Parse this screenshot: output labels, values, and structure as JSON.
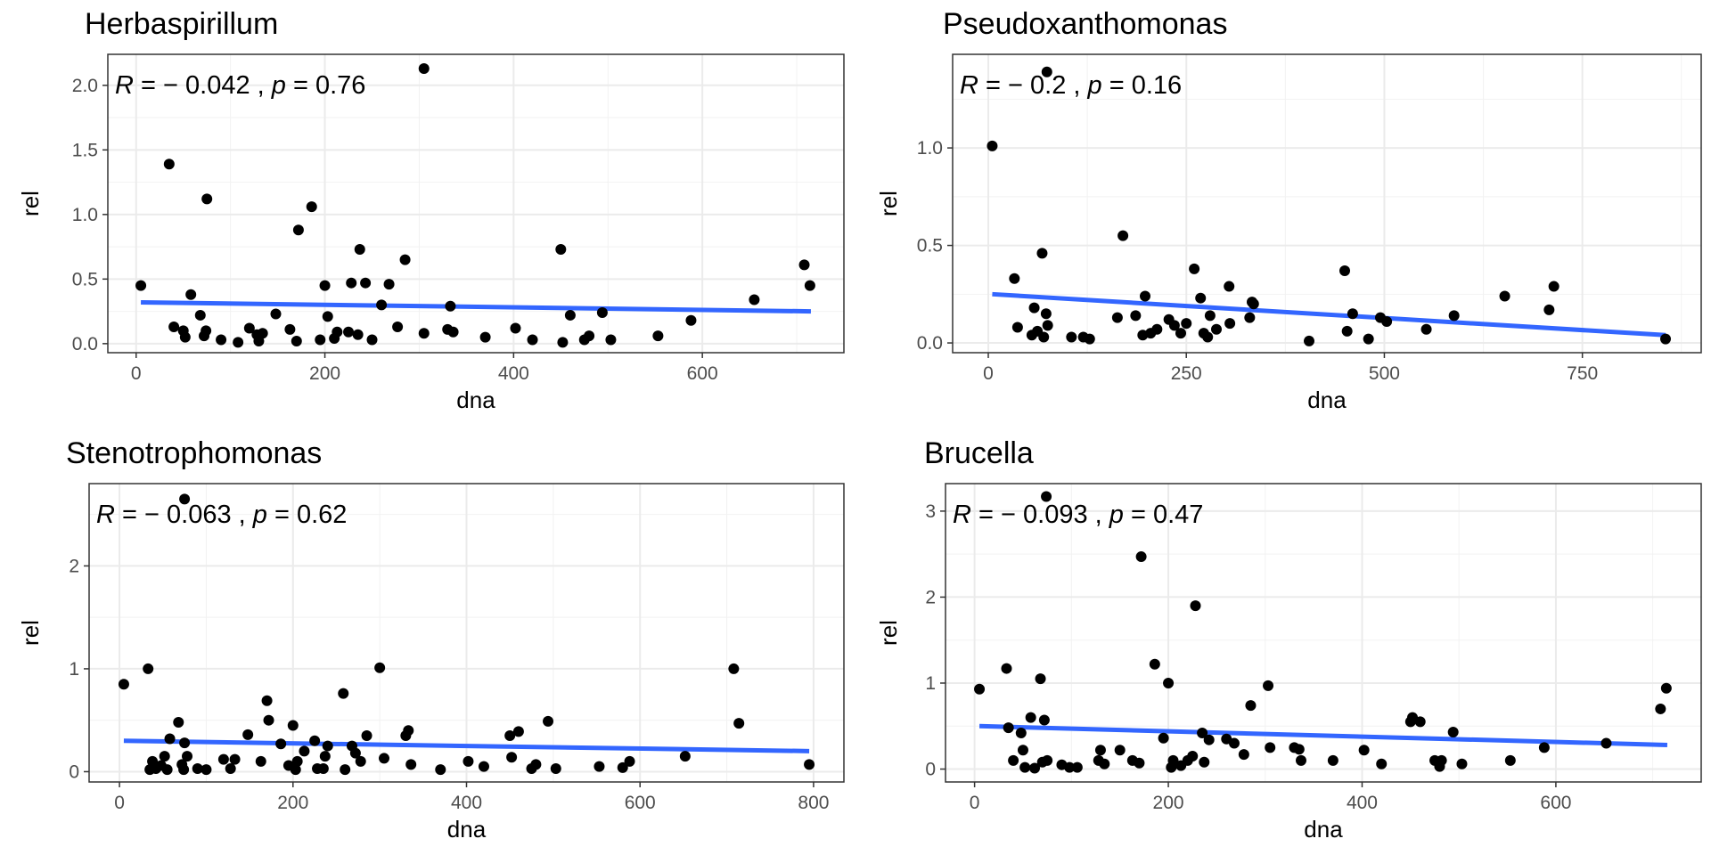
{
  "chart_data": [
    {
      "type": "scatter",
      "title": "Herbaspirillum",
      "xlabel": "dna",
      "ylabel": "rel",
      "stat_label": {
        "R": "R",
        "eq": " = ",
        "r": "− 0.042",
        "sep": " , ",
        "p": "p",
        "pval": "0.76"
      },
      "xlim": [
        -30,
        750
      ],
      "ylim": [
        -0.07,
        2.24
      ],
      "xticks": [
        0,
        200,
        400,
        600
      ],
      "yticks": [
        0.0,
        0.5,
        1.0,
        1.5,
        2.0
      ],
      "ytick_labels": [
        "0.0",
        "0.5",
        "1.0",
        "1.5",
        "2.0"
      ],
      "grid": true,
      "line_color": "#3366ff",
      "trend": {
        "x": [
          5,
          715
        ],
        "y": [
          0.32,
          0.25
        ]
      },
      "points": [
        [
          5,
          0.45
        ],
        [
          35,
          1.39
        ],
        [
          40,
          0.13
        ],
        [
          50,
          0.1
        ],
        [
          52,
          0.05
        ],
        [
          58,
          0.38
        ],
        [
          68,
          0.22
        ],
        [
          72,
          0.06
        ],
        [
          74,
          0.1
        ],
        [
          75,
          1.12
        ],
        [
          90,
          0.03
        ],
        [
          108,
          0.01
        ],
        [
          120,
          0.12
        ],
        [
          128,
          0.07
        ],
        [
          130,
          0.02
        ],
        [
          134,
          0.08
        ],
        [
          148,
          0.23
        ],
        [
          163,
          0.11
        ],
        [
          170,
          0.02
        ],
        [
          172,
          0.88
        ],
        [
          186,
          1.06
        ],
        [
          195,
          0.03
        ],
        [
          200,
          0.45
        ],
        [
          203,
          0.21
        ],
        [
          210,
          0.04
        ],
        [
          213,
          0.09
        ],
        [
          225,
          0.09
        ],
        [
          228,
          0.47
        ],
        [
          235,
          0.07
        ],
        [
          237,
          0.73
        ],
        [
          243,
          0.47
        ],
        [
          250,
          0.03
        ],
        [
          260,
          0.3
        ],
        [
          268,
          0.46
        ],
        [
          277,
          0.13
        ],
        [
          285,
          0.65
        ],
        [
          305,
          2.13
        ],
        [
          305,
          0.08
        ],
        [
          330,
          0.11
        ],
        [
          333,
          0.29
        ],
        [
          336,
          0.09
        ],
        [
          370,
          0.05
        ],
        [
          402,
          0.12
        ],
        [
          420,
          0.03
        ],
        [
          450,
          0.73
        ],
        [
          452,
          0.01
        ],
        [
          460,
          0.22
        ],
        [
          475,
          0.03
        ],
        [
          480,
          0.06
        ],
        [
          494,
          0.24
        ],
        [
          503,
          0.03
        ],
        [
          553,
          0.06
        ],
        [
          588,
          0.18
        ],
        [
          655,
          0.34
        ],
        [
          708,
          0.61
        ],
        [
          714,
          0.45
        ]
      ]
    },
    {
      "type": "scatter",
      "title": "Pseudoxanthomonas",
      "xlabel": "dna",
      "ylabel": "rel",
      "stat_label": {
        "R": "R",
        "eq": " = ",
        "r": "− 0.2",
        "sep": " , ",
        "p": "p",
        "pval": "0.16"
      },
      "xlim": [
        -45,
        900
      ],
      "ylim": [
        -0.05,
        1.48
      ],
      "xticks": [
        0,
        250,
        500,
        750
      ],
      "yticks": [
        0.0,
        0.5,
        1.0
      ],
      "ytick_labels": [
        "0.0",
        "0.5",
        "1.0"
      ],
      "grid": true,
      "line_color": "#3366ff",
      "trend": {
        "x": [
          5,
          855
        ],
        "y": [
          0.25,
          0.04
        ]
      },
      "points": [
        [
          5,
          1.01
        ],
        [
          33,
          0.33
        ],
        [
          37,
          0.08
        ],
        [
          55,
          0.04
        ],
        [
          58,
          0.18
        ],
        [
          62,
          0.06
        ],
        [
          68,
          0.46
        ],
        [
          70,
          0.03
        ],
        [
          73,
          0.15
        ],
        [
          74,
          1.39
        ],
        [
          75,
          0.09
        ],
        [
          105,
          0.03
        ],
        [
          120,
          0.03
        ],
        [
          128,
          0.02
        ],
        [
          163,
          0.13
        ],
        [
          170,
          0.55
        ],
        [
          186,
          0.14
        ],
        [
          195,
          0.04
        ],
        [
          198,
          0.24
        ],
        [
          205,
          0.05
        ],
        [
          213,
          0.07
        ],
        [
          228,
          0.12
        ],
        [
          235,
          0.09
        ],
        [
          243,
          0.05
        ],
        [
          250,
          0.1
        ],
        [
          260,
          0.38
        ],
        [
          268,
          0.23
        ],
        [
          272,
          0.05
        ],
        [
          277,
          0.03
        ],
        [
          280,
          0.14
        ],
        [
          288,
          0.07
        ],
        [
          304,
          0.29
        ],
        [
          305,
          0.1
        ],
        [
          330,
          0.13
        ],
        [
          333,
          0.21
        ],
        [
          335,
          0.2
        ],
        [
          405,
          0.01
        ],
        [
          450,
          0.37
        ],
        [
          453,
          0.06
        ],
        [
          460,
          0.15
        ],
        [
          480,
          0.02
        ],
        [
          495,
          0.13
        ],
        [
          503,
          0.11
        ],
        [
          553,
          0.07
        ],
        [
          588,
          0.14
        ],
        [
          652,
          0.24
        ],
        [
          708,
          0.17
        ],
        [
          714,
          0.29
        ],
        [
          855,
          0.02
        ]
      ]
    },
    {
      "type": "scatter",
      "title": "Stenotrophomonas",
      "xlabel": "dna",
      "ylabel": "rel",
      "stat_label": {
        "R": "R",
        "eq": " = ",
        "r": "− 0.063",
        "sep": " , ",
        "p": "p",
        "pval": "0.62"
      },
      "xlim": [
        -35,
        835
      ],
      "ylim": [
        -0.1,
        2.8
      ],
      "xticks": [
        0,
        200,
        400,
        600,
        800
      ],
      "yticks": [
        0,
        1,
        2
      ],
      "ytick_labels": [
        "0",
        "1",
        "2"
      ],
      "grid": true,
      "line_color": "#3366ff",
      "trend": {
        "x": [
          5,
          795
        ],
        "y": [
          0.3,
          0.2
        ]
      },
      "points": [
        [
          5,
          0.85
        ],
        [
          33,
          1.0
        ],
        [
          35,
          0.02
        ],
        [
          38,
          0.1
        ],
        [
          42,
          0.03
        ],
        [
          48,
          0.06
        ],
        [
          52,
          0.15
        ],
        [
          55,
          0.02
        ],
        [
          58,
          0.32
        ],
        [
          68,
          0.48
        ],
        [
          72,
          0.07
        ],
        [
          74,
          0.02
        ],
        [
          75,
          0.28
        ],
        [
          75,
          2.65
        ],
        [
          78,
          0.15
        ],
        [
          90,
          0.03
        ],
        [
          100,
          0.02
        ],
        [
          120,
          0.12
        ],
        [
          128,
          0.03
        ],
        [
          133,
          0.12
        ],
        [
          148,
          0.36
        ],
        [
          163,
          0.1
        ],
        [
          170,
          0.69
        ],
        [
          172,
          0.5
        ],
        [
          186,
          0.27
        ],
        [
          195,
          0.06
        ],
        [
          200,
          0.45
        ],
        [
          203,
          0.02
        ],
        [
          205,
          0.1
        ],
        [
          213,
          0.2
        ],
        [
          225,
          0.3
        ],
        [
          228,
          0.03
        ],
        [
          235,
          0.03
        ],
        [
          237,
          0.15
        ],
        [
          240,
          0.25
        ],
        [
          258,
          0.76
        ],
        [
          260,
          0.02
        ],
        [
          268,
          0.25
        ],
        [
          272,
          0.18
        ],
        [
          278,
          0.1
        ],
        [
          285,
          0.35
        ],
        [
          300,
          1.01
        ],
        [
          305,
          0.13
        ],
        [
          330,
          0.35
        ],
        [
          333,
          0.4
        ],
        [
          336,
          0.07
        ],
        [
          370,
          0.02
        ],
        [
          402,
          0.1
        ],
        [
          420,
          0.05
        ],
        [
          450,
          0.35
        ],
        [
          452,
          0.14
        ],
        [
          460,
          0.39
        ],
        [
          475,
          0.03
        ],
        [
          480,
          0.07
        ],
        [
          494,
          0.49
        ],
        [
          503,
          0.03
        ],
        [
          553,
          0.05
        ],
        [
          580,
          0.04
        ],
        [
          588,
          0.1
        ],
        [
          652,
          0.15
        ],
        [
          708,
          1.0
        ],
        [
          714,
          0.47
        ],
        [
          795,
          0.07
        ]
      ]
    },
    {
      "type": "scatter",
      "title": "Brucella",
      "xlabel": "dna",
      "ylabel": "rel",
      "stat_label": {
        "R": "R",
        "eq": " = ",
        "r": "− 0.093",
        "sep": " , ",
        "p": "p",
        "pval": "0.47"
      },
      "xlim": [
        -30,
        750
      ],
      "ylim": [
        -0.15,
        3.32
      ],
      "xticks": [
        0,
        200,
        400,
        600
      ],
      "yticks": [
        0,
        1,
        2,
        3
      ],
      "ytick_labels": [
        "0",
        "1",
        "2",
        "3"
      ],
      "grid": true,
      "line_color": "#3366ff",
      "trend": {
        "x": [
          5,
          715
        ],
        "y": [
          0.5,
          0.28
        ]
      },
      "points": [
        [
          5,
          0.93
        ],
        [
          33,
          1.17
        ],
        [
          35,
          0.48
        ],
        [
          40,
          0.1
        ],
        [
          48,
          0.42
        ],
        [
          50,
          0.22
        ],
        [
          52,
          0.02
        ],
        [
          58,
          0.6
        ],
        [
          62,
          0.01
        ],
        [
          68,
          1.05
        ],
        [
          70,
          0.08
        ],
        [
          72,
          0.57
        ],
        [
          74,
          3.17
        ],
        [
          75,
          0.1
        ],
        [
          90,
          0.05
        ],
        [
          98,
          0.02
        ],
        [
          106,
          0.02
        ],
        [
          128,
          0.1
        ],
        [
          130,
          0.22
        ],
        [
          134,
          0.06
        ],
        [
          150,
          0.22
        ],
        [
          163,
          0.1
        ],
        [
          170,
          0.07
        ],
        [
          172,
          2.47
        ],
        [
          186,
          1.22
        ],
        [
          195,
          0.36
        ],
        [
          200,
          1.0
        ],
        [
          203,
          0.02
        ],
        [
          205,
          0.1
        ],
        [
          213,
          0.04
        ],
        [
          220,
          0.1
        ],
        [
          225,
          0.15
        ],
        [
          228,
          1.9
        ],
        [
          235,
          0.42
        ],
        [
          237,
          0.08
        ],
        [
          242,
          0.34
        ],
        [
          260,
          0.35
        ],
        [
          268,
          0.3
        ],
        [
          278,
          0.17
        ],
        [
          285,
          0.74
        ],
        [
          303,
          0.97
        ],
        [
          305,
          0.25
        ],
        [
          330,
          0.25
        ],
        [
          335,
          0.23
        ],
        [
          337,
          0.1
        ],
        [
          370,
          0.1
        ],
        [
          402,
          0.22
        ],
        [
          420,
          0.06
        ],
        [
          450,
          0.55
        ],
        [
          452,
          0.6
        ],
        [
          460,
          0.55
        ],
        [
          475,
          0.1
        ],
        [
          480,
          0.03
        ],
        [
          482,
          0.1
        ],
        [
          494,
          0.43
        ],
        [
          503,
          0.06
        ],
        [
          553,
          0.1
        ],
        [
          588,
          0.25
        ],
        [
          652,
          0.3
        ],
        [
          708,
          0.7
        ],
        [
          714,
          0.94
        ]
      ]
    }
  ]
}
